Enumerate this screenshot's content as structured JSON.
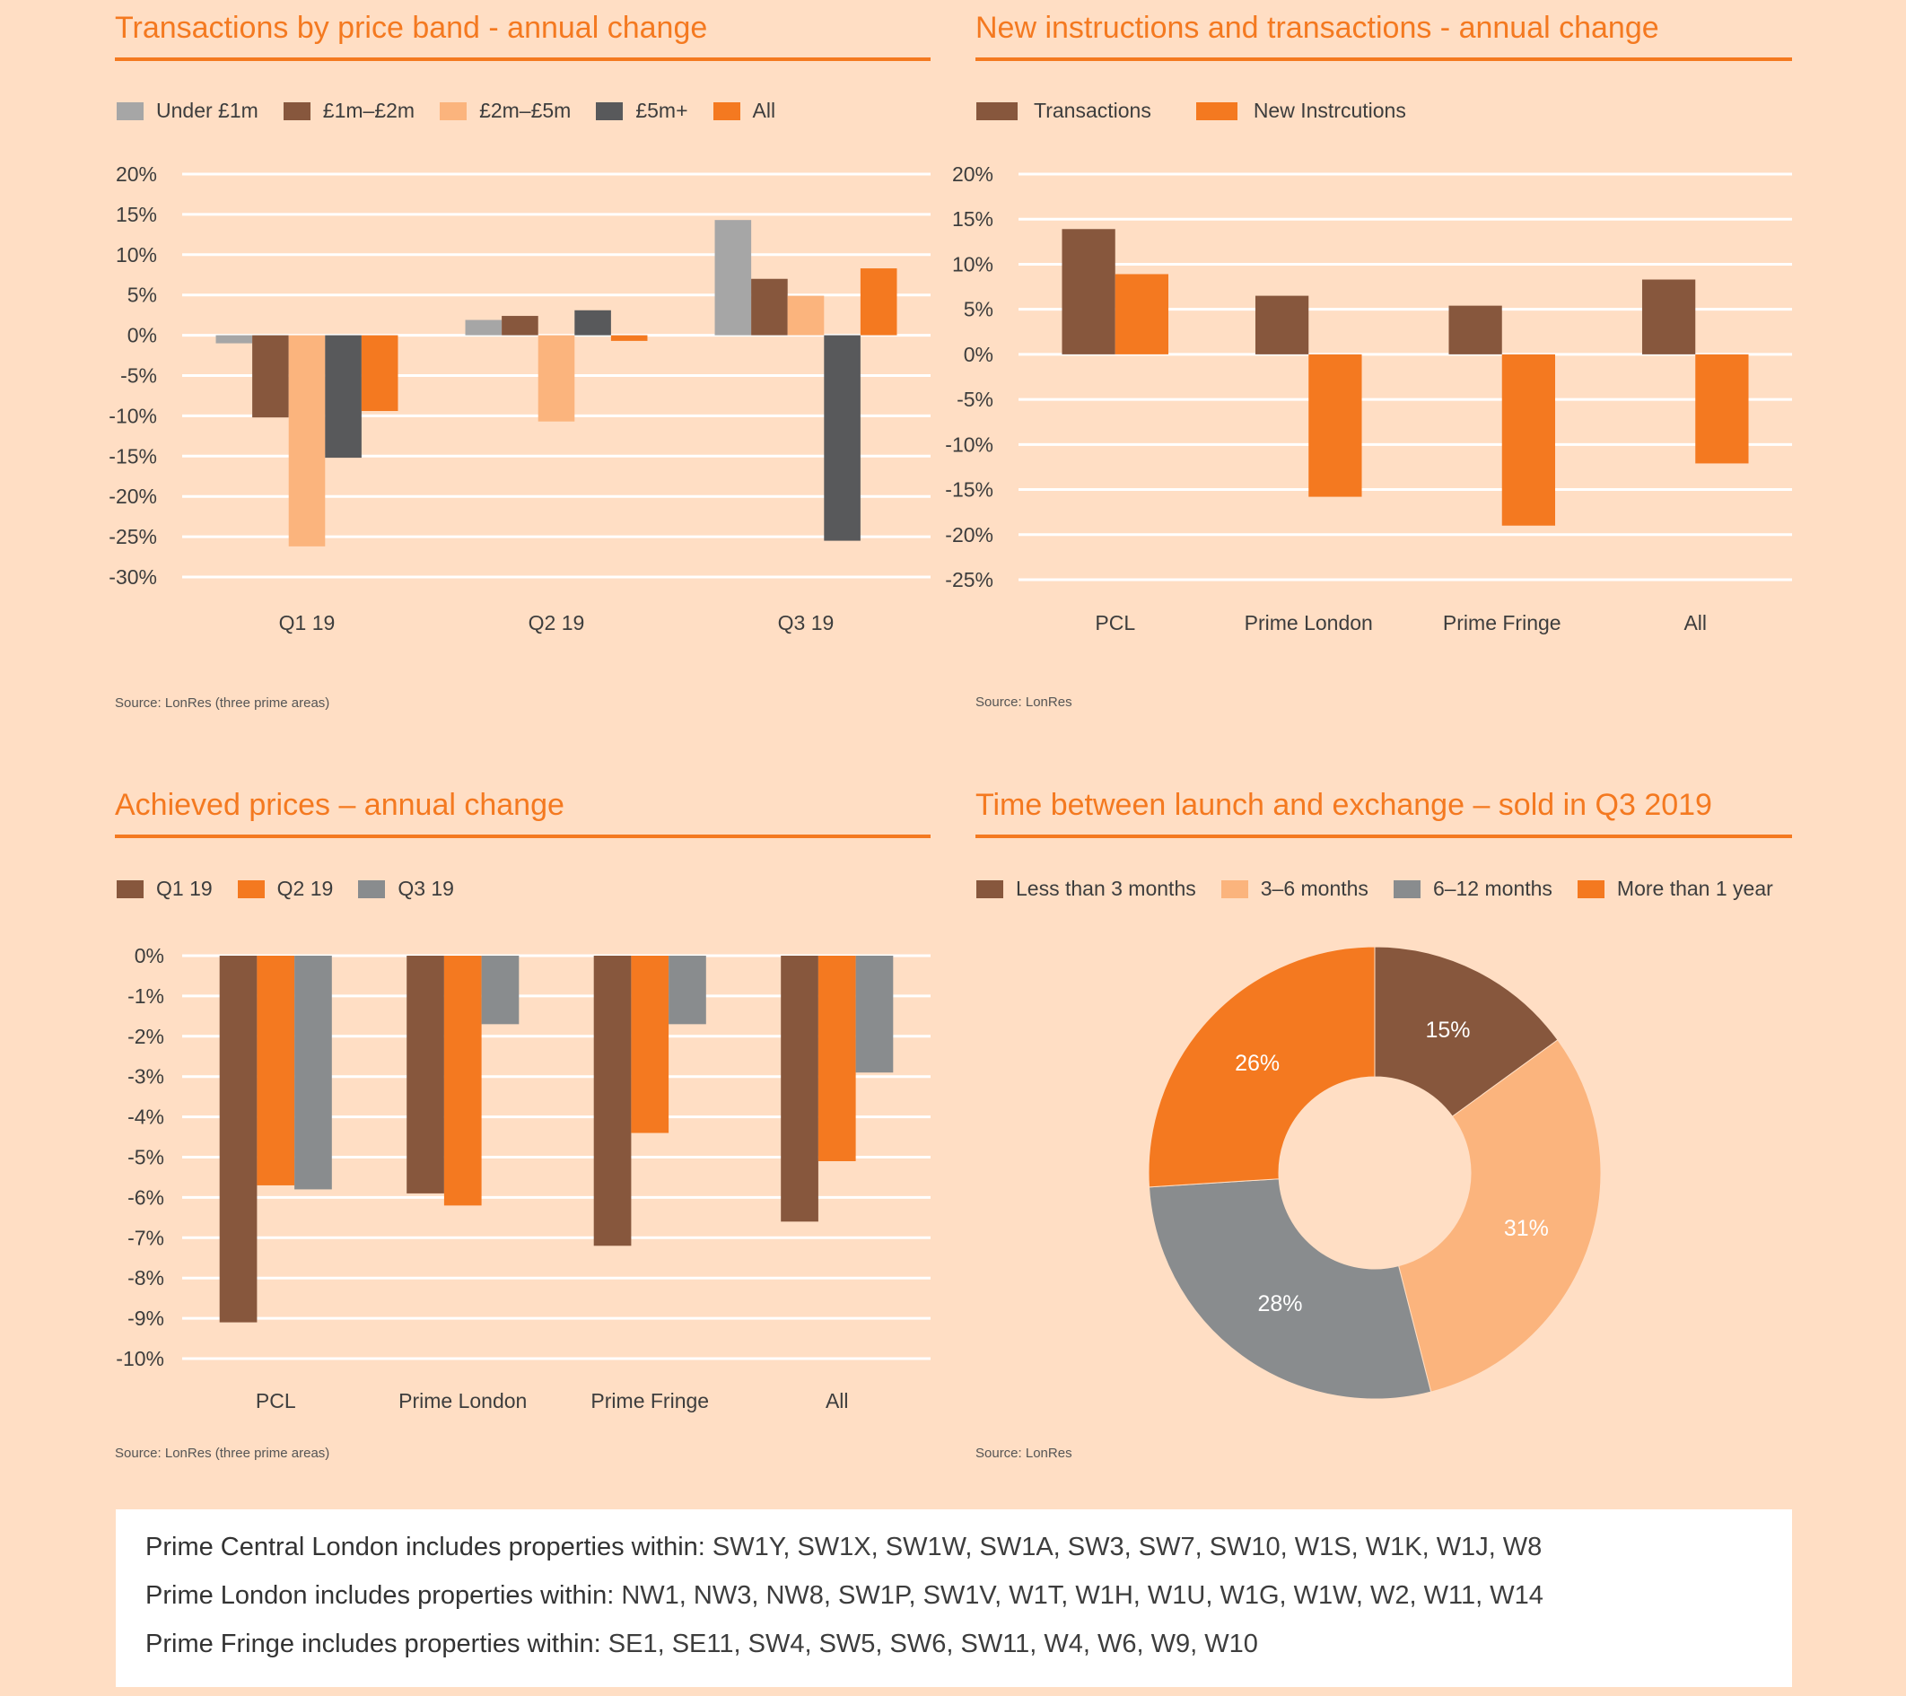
{
  "colors": {
    "background": "#FFDEC4",
    "accent": "#F47920",
    "brown": "#87573D",
    "light_orange": "#FBB47D",
    "grey": "#A6A6A6",
    "dark_grey": "#58595B",
    "mid_grey": "#898C8E"
  },
  "chart_data": [
    {
      "type": "bar",
      "title": "Transactions by price band - annual change",
      "categories": [
        "Q1 19",
        "Q2 19",
        "Q3 19"
      ],
      "series": [
        {
          "name": "Under £1m",
          "color": "#A6A6A6",
          "values": [
            -1.0,
            1.9,
            14.3
          ]
        },
        {
          "name": "£1m–£2m",
          "color": "#87573D",
          "values": [
            -10.2,
            2.4,
            7.0
          ]
        },
        {
          "name": "£2m–£5m",
          "color": "#FBB47D",
          "values": [
            -26.2,
            -10.7,
            4.9
          ]
        },
        {
          "name": "£5m+",
          "color": "#58595B",
          "values": [
            -15.2,
            3.1,
            -25.5
          ]
        },
        {
          "name": "All",
          "color": "#F47920",
          "values": [
            -9.4,
            -0.7,
            8.3
          ]
        }
      ],
      "yticks": [
        "20%",
        "15%",
        "10%",
        "5%",
        "0%",
        "-5%",
        "-10%",
        "-15%",
        "-20%",
        "-25%",
        "-30%"
      ],
      "ylim": [
        -30,
        20
      ],
      "ystep": 5,
      "grid": true,
      "legend": "top-left",
      "source": "Source: LonRes (three prime areas)"
    },
    {
      "type": "bar",
      "title": "New instructions and transactions - annual change",
      "categories": [
        "PCL",
        "Prime London",
        "Prime Fringe",
        "All"
      ],
      "series": [
        {
          "name": "Transactions",
          "color": "#87573D",
          "values": [
            13.9,
            6.5,
            5.4,
            8.3
          ]
        },
        {
          "name": "New Instrcutions",
          "color": "#F47920",
          "values": [
            8.9,
            -15.8,
            -19.0,
            -12.1
          ]
        }
      ],
      "yticks": [
        "20%",
        "15%",
        "10%",
        "5%",
        "0%",
        "-5%",
        "-10%",
        "-15%",
        "-20%",
        "-25%"
      ],
      "ylim": [
        -25,
        20
      ],
      "ystep": 5,
      "grid": true,
      "legend": "top-left",
      "source": "Source: LonRes"
    },
    {
      "type": "bar",
      "title": "Achieved prices – annual change",
      "categories": [
        "PCL",
        "Prime London",
        "Prime Fringe",
        "All"
      ],
      "series": [
        {
          "name": "Q1 19",
          "color": "#87573D",
          "values": [
            -9.1,
            -5.9,
            -7.2,
            -6.6
          ]
        },
        {
          "name": "Q2 19",
          "color": "#F47920",
          "values": [
            -5.7,
            -6.2,
            -4.4,
            -5.1
          ]
        },
        {
          "name": "Q3 19",
          "color": "#898C8E",
          "values": [
            -5.8,
            -1.7,
            -1.7,
            -2.9
          ]
        }
      ],
      "yticks": [
        "0%",
        "-1%",
        "-2%",
        "-3%",
        "-4%",
        "-5%",
        "-6%",
        "-7%",
        "-8%",
        "-9%",
        "-10%"
      ],
      "ylim": [
        -10,
        0
      ],
      "ystep": 1,
      "grid": true,
      "legend": "top-left",
      "source": "Source: LonRes (three prime areas)"
    },
    {
      "type": "pie",
      "title": "Time between launch and exchange – sold in Q3 2019",
      "donut": true,
      "slices": [
        {
          "name": "Less than 3 months",
          "color": "#87573D",
          "value": 15,
          "label": "15%"
        },
        {
          "name": "3–6 months",
          "color": "#FBB47D",
          "value": 31,
          "label": "31%"
        },
        {
          "name": "6–12 months",
          "color": "#898C8E",
          "value": 28,
          "label": "28%"
        },
        {
          "name": "More than 1 year",
          "color": "#F47920",
          "value": 26,
          "label": "26%"
        }
      ],
      "legend": "top-left",
      "source": "Source: LonRes"
    }
  ],
  "footer": {
    "lines": [
      {
        "label": "Prime Central London includes properties within:",
        "value": " SW1Y, SW1X, SW1W, SW1A, SW3, SW7, SW10, W1S, W1K, W1J, W8"
      },
      {
        "label": "Prime London includes properties within:",
        "value": " NW1, NW3, NW8, SW1P, SW1V, W1T, W1H, W1U, W1G, W1W, W2, W11, W14"
      },
      {
        "label": "Prime Fringe includes properties within:",
        "value": " SE1, SE11, SW4, SW5, SW6, SW11, W4, W6, W9, W10"
      }
    ]
  }
}
